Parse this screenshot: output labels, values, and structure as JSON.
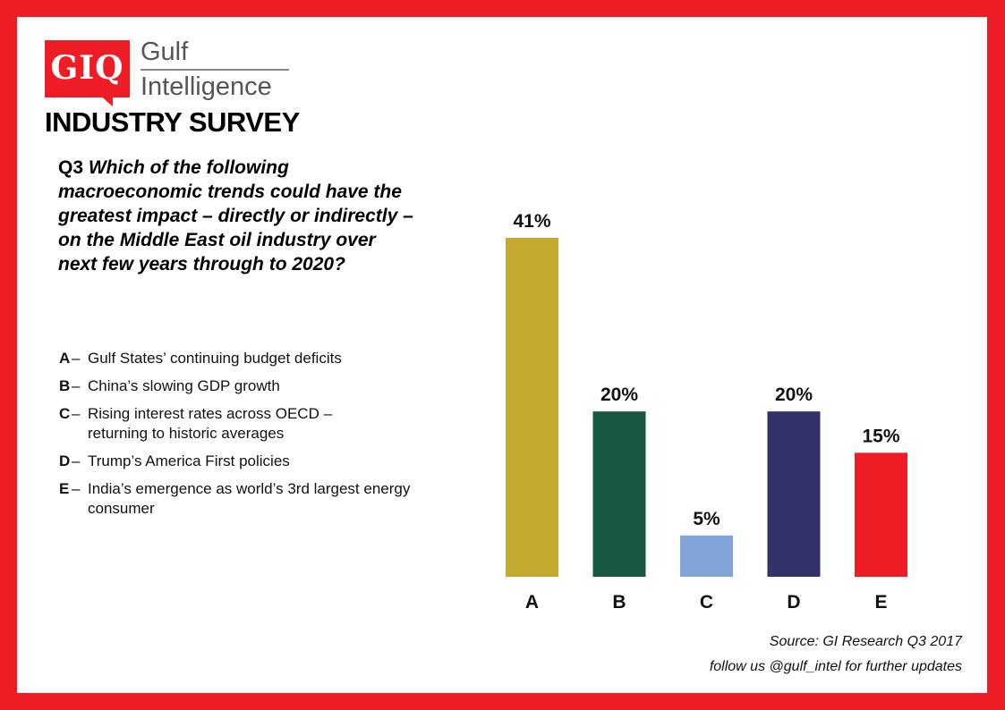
{
  "logo": {
    "abbr": "GIQ",
    "name_line1": "Gulf",
    "name_line2": "Intelligence"
  },
  "survey_title": "INDUSTRY SURVEY",
  "question": {
    "number": "Q3",
    "text": "Which of the following macroeconomic trends could have the greatest impact – directly or indirectly – on the Middle East oil industry over next few years through to 2020?"
  },
  "options": [
    {
      "key": "A",
      "label": "Gulf States’ continuing budget deficits"
    },
    {
      "key": "B",
      "label": "China’s slowing GDP growth"
    },
    {
      "key": "C",
      "label": "Rising interest rates across OECD – returning to historic averages"
    },
    {
      "key": "D",
      "label": "Trump’s America First policies"
    },
    {
      "key": "E",
      "label": "India’s emergence as world’s 3rd largest energy consumer"
    }
  ],
  "chart_data": {
    "type": "bar",
    "categories": [
      "A",
      "B",
      "C",
      "D",
      "E"
    ],
    "values": [
      41,
      20,
      5,
      20,
      15
    ],
    "value_labels": [
      "41%",
      "20%",
      "5%",
      "20%",
      "15%"
    ],
    "colors": [
      "#c6a92f",
      "#1b5841",
      "#82a3d5",
      "#33316a",
      "#ee1c25"
    ],
    "ylim": [
      0,
      41
    ],
    "title": "",
    "xlabel": "",
    "ylabel": "",
    "grid": false,
    "legend": "none"
  },
  "footer": {
    "source": "Source: GI Research Q3 2017",
    "follow": "follow us @gulf_intel for further updates"
  },
  "colors": {
    "frame": "#ee1c25",
    "logo_bg": "#ee1c25"
  }
}
